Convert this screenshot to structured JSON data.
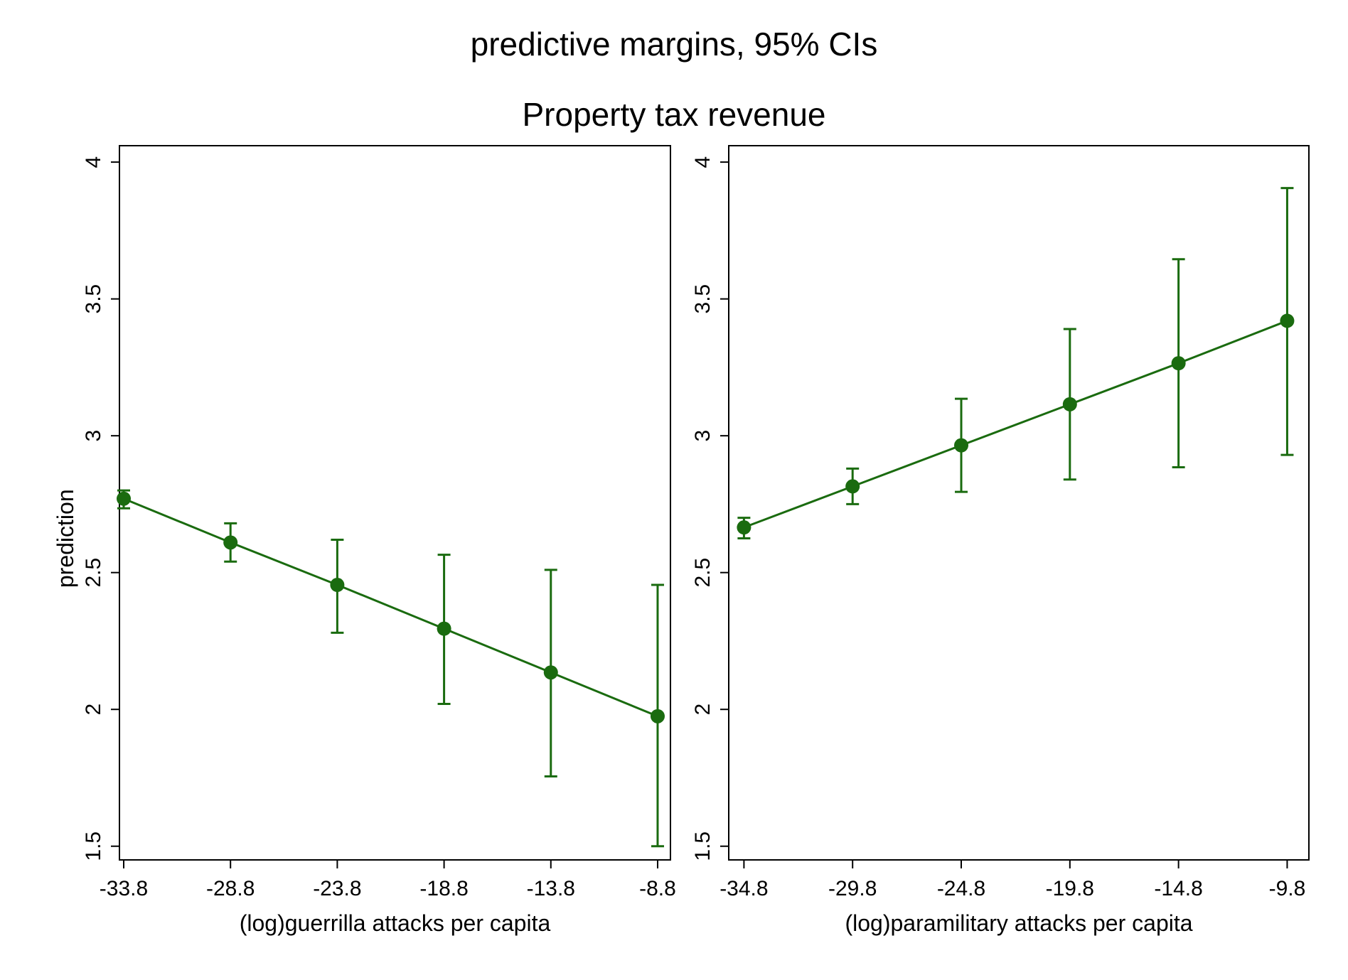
{
  "title": "predictive margins, 95% CIs",
  "subtitle": "Property tax revenue",
  "color": "#1a6b0f",
  "chart_data": [
    {
      "type": "line",
      "panel": "left",
      "xlabel": "(log)guerrilla attacks per capita",
      "ylabel": "prediction",
      "xlim": [
        -34.0,
        -8.2
      ],
      "ylim": [
        1.45,
        4.06
      ],
      "x_ticks": [
        "-33.8",
        "-28.8",
        "-23.8",
        "-18.8",
        "-13.8",
        "-8.8"
      ],
      "y_ticks": [
        "1.5",
        "2",
        "2.5",
        "3",
        "3.5",
        "4"
      ],
      "x": [
        -33.8,
        -28.8,
        -23.8,
        -18.8,
        -13.8,
        -8.8
      ],
      "y": [
        2.77,
        2.61,
        2.455,
        2.295,
        2.135,
        1.975
      ],
      "ci_lower": [
        2.735,
        2.54,
        2.28,
        2.02,
        1.755,
        1.5
      ],
      "ci_upper": [
        2.8,
        2.68,
        2.62,
        2.565,
        2.51,
        2.455
      ],
      "grid": false,
      "legend": "none"
    },
    {
      "type": "line",
      "panel": "right",
      "xlabel": "(log)paramilitary attacks per capita",
      "ylabel": "",
      "xlim": [
        -35.5,
        -8.8
      ],
      "ylim": [
        1.45,
        4.06
      ],
      "x_ticks": [
        "-34.8",
        "-29.8",
        "-24.8",
        "-19.8",
        "-14.8",
        "-9.8"
      ],
      "y_ticks": [
        "1.5",
        "2",
        "2.5",
        "3",
        "3.5",
        "4"
      ],
      "x": [
        -34.8,
        -29.8,
        -24.8,
        -19.8,
        -14.8,
        -9.8
      ],
      "y": [
        2.665,
        2.815,
        2.965,
        3.115,
        3.265,
        3.42
      ],
      "ci_lower": [
        2.625,
        2.75,
        2.795,
        2.84,
        2.885,
        2.93
      ],
      "ci_upper": [
        2.7,
        2.88,
        3.135,
        3.39,
        3.645,
        3.905
      ],
      "grid": false,
      "legend": "none"
    }
  ]
}
